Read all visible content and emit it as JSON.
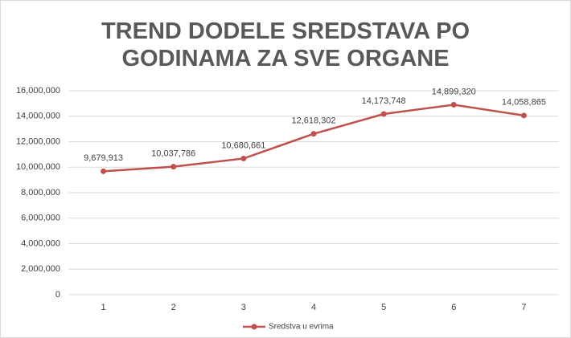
{
  "chart_data": {
    "type": "line",
    "title": "TREND DODELE SREDSTAVA PO GODINAMA ZA SVE ORGANE",
    "categories": [
      "1",
      "2",
      "3",
      "4",
      "5",
      "6",
      "7"
    ],
    "series": [
      {
        "name": "Sredstva u evrima",
        "color": "#c0504d",
        "values": [
          9679913,
          10037786,
          10680661,
          12618302,
          14173748,
          14899320,
          14058865
        ],
        "value_labels": [
          "9,679,913",
          "10,037,786",
          "10,680,661",
          "12,618,302",
          "14,173,748",
          "14,899,320",
          "14,058,865"
        ]
      }
    ],
    "ylim": [
      0,
      16000000
    ],
    "yticks": [
      0,
      {
        "value": 2000000,
        "label": "2,000,000"
      },
      {
        "value": 4000000,
        "label": "4,000,000"
      },
      {
        "value": 6000000,
        "label": "6,000,000"
      },
      {
        "value": 8000000,
        "label": "8,000,000"
      },
      {
        "value": 10000000,
        "label": "10,000,000"
      },
      {
        "value": 12000000,
        "label": "12,000,000"
      },
      {
        "value": 14000000,
        "label": "14,000,000"
      },
      {
        "value": 16000000,
        "label": "16,000,000"
      }
    ],
    "grid": true,
    "legend": "bottom"
  }
}
